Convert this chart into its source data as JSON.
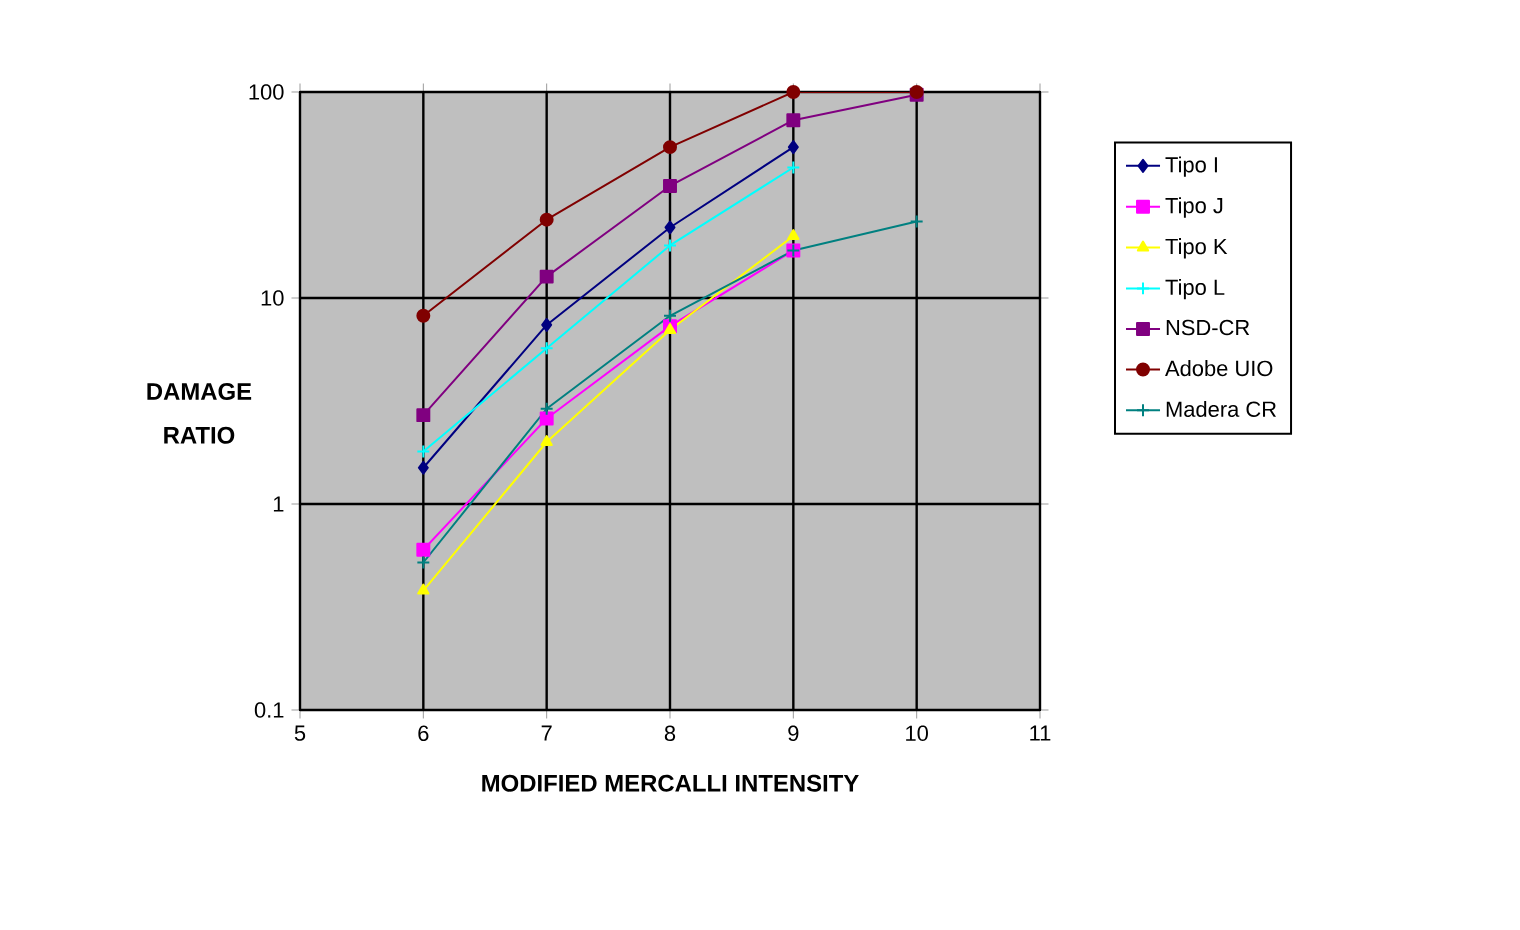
{
  "chart_data": {
    "type": "line",
    "xlabel": "MODIFIED MERCALLI INTENSITY",
    "ylabel": "DAMAGE RATIO",
    "x": [
      6,
      7,
      8,
      9,
      10
    ],
    "xlim": [
      5,
      11
    ],
    "xticks": [
      5,
      6,
      7,
      8,
      9,
      10,
      11
    ],
    "ylim": [
      0.1,
      100
    ],
    "yticks": [
      0.1,
      1,
      10,
      100
    ],
    "log": "y",
    "grid": true,
    "legend": "right",
    "series": [
      {
        "name": "Tipo I",
        "color": "#000080",
        "marker": "diamond",
        "values": [
          1.5,
          7.4,
          22,
          54,
          null
        ]
      },
      {
        "name": "Tipo J",
        "color": "#ff00ff",
        "marker": "square",
        "values": [
          0.6,
          2.6,
          7.3,
          17,
          null
        ]
      },
      {
        "name": "Tipo K",
        "color": "#ffff00",
        "marker": "triangle",
        "values": [
          0.38,
          2.0,
          7.0,
          20,
          null
        ]
      },
      {
        "name": "Tipo L",
        "color": "#00ffff",
        "marker": "cross",
        "values": [
          1.8,
          5.7,
          18,
          43,
          null
        ]
      },
      {
        "name": "NSD-CR",
        "color": "#800080",
        "marker": "square",
        "values": [
          2.7,
          12.7,
          35,
          73,
          97
        ]
      },
      {
        "name": "Adobe UIO",
        "color": "#800000",
        "marker": "circle",
        "values": [
          8.2,
          24,
          54,
          100,
          100
        ]
      },
      {
        "name": "Madera CR",
        "color": "#008080",
        "marker": "cross",
        "values": [
          0.52,
          2.9,
          8.2,
          17,
          23.5
        ]
      }
    ]
  }
}
